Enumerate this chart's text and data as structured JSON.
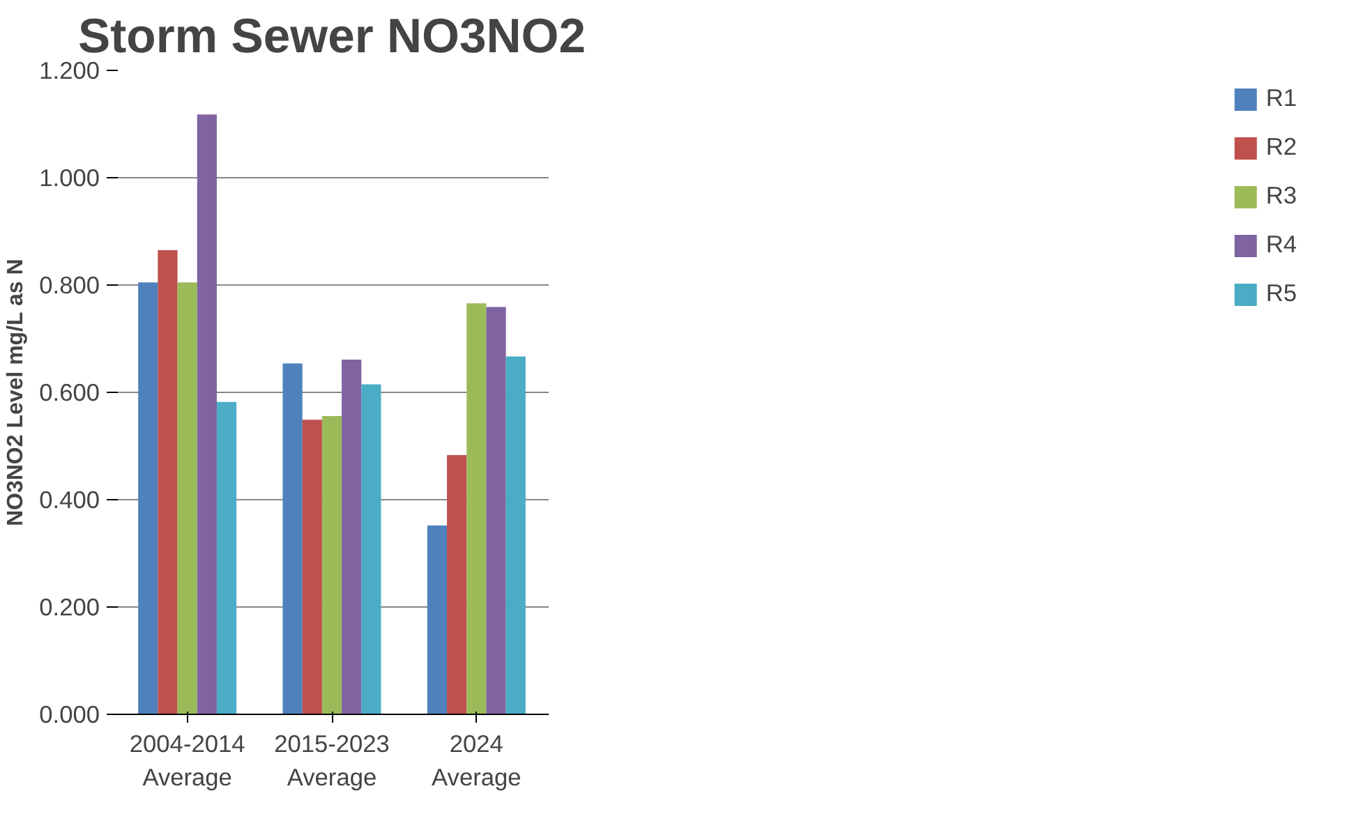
{
  "chart_data": {
    "type": "bar",
    "title": "Storm Sewer NO3NO2",
    "ylabel": "NO3NO2 Level mg/L as N",
    "categories": [
      "2004-2014\nAverage",
      "2015-2023\nAverage",
      "2024\nAverage"
    ],
    "series": [
      {
        "name": "R1",
        "color": "#4f81bd",
        "values": [
          0.805,
          0.654,
          0.352
        ]
      },
      {
        "name": "R2",
        "color": "#c0504d",
        "values": [
          0.865,
          0.549,
          0.483
        ]
      },
      {
        "name": "R3",
        "color": "#9bbb59",
        "values": [
          0.805,
          0.556,
          0.766
        ]
      },
      {
        "name": "R4",
        "color": "#8064a2",
        "values": [
          1.118,
          0.661,
          0.759
        ]
      },
      {
        "name": "R5",
        "color": "#4bacc6",
        "values": [
          0.582,
          0.615,
          0.667
        ]
      }
    ],
    "ylim": [
      0,
      1.2
    ],
    "yticks": [
      {
        "value": 0,
        "label": "0.000"
      },
      {
        "value": 0.2,
        "label": "0.200"
      },
      {
        "value": 0.4,
        "label": "0.400"
      },
      {
        "value": 0.6,
        "label": "0.600"
      },
      {
        "value": 0.8,
        "label": "0.800"
      },
      {
        "value": 1.0,
        "label": "1.000"
      },
      {
        "value": 1.2,
        "label": "1.200"
      }
    ],
    "grid": "y",
    "legend": "right"
  }
}
